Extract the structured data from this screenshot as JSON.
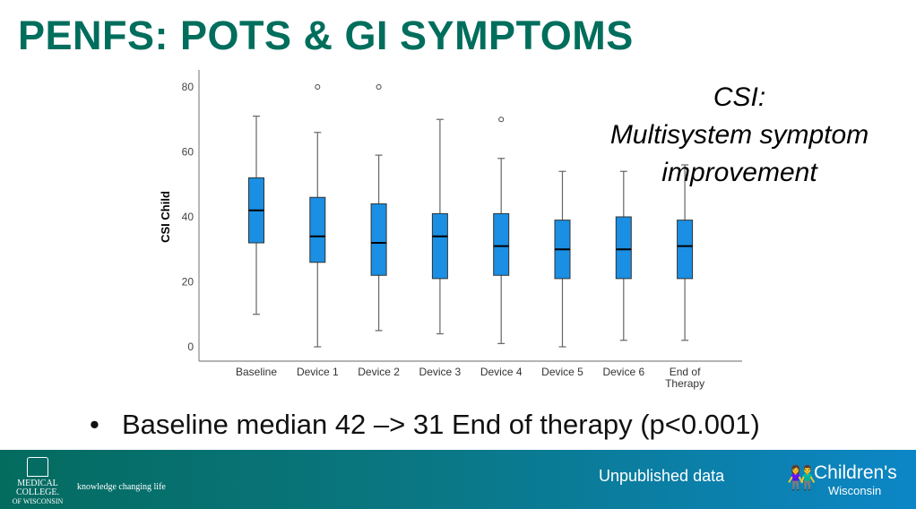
{
  "slide": {
    "title": "PENFS: POTS & GI SYMPTOMS",
    "annotation": [
      "CSI:",
      "Multisystem symptom",
      "improvement"
    ],
    "bullet": "Baseline median 42 –> 31 End of therapy (p<0.001)",
    "footer": {
      "left_logo": [
        "MEDICAL",
        "COLLEGE.",
        "OF WISCONSIN"
      ],
      "tagline": "knowledge changing life",
      "note": "Unpublished data",
      "right_logo": [
        "Children's",
        "Wisconsin"
      ]
    }
  },
  "chart_data": {
    "type": "boxplot",
    "ylabel": "CSI Child",
    "xlabel": "",
    "ylim": [
      0,
      80
    ],
    "yticks": [
      "0",
      "20",
      "40",
      "60",
      "80"
    ],
    "grid": false,
    "box_color": "#1a8fe3",
    "categories": [
      "Baseline",
      "Device 1",
      "Device 2",
      "Device 3",
      "Device 4",
      "Device 5",
      "Device 6",
      "End of Therapy"
    ],
    "boxes": [
      {
        "min": 10,
        "q1": 32,
        "median": 42,
        "q3": 52,
        "max": 71,
        "outliers": []
      },
      {
        "min": 0,
        "q1": 26,
        "median": 34,
        "q3": 46,
        "max": 66,
        "outliers": [
          80
        ]
      },
      {
        "min": 5,
        "q1": 22,
        "median": 32,
        "q3": 44,
        "max": 59,
        "outliers": [
          80
        ]
      },
      {
        "min": 4,
        "q1": 21,
        "median": 34,
        "q3": 41,
        "max": 70,
        "outliers": []
      },
      {
        "min": 1,
        "q1": 22,
        "median": 31,
        "q3": 41,
        "max": 58,
        "outliers": [
          70
        ]
      },
      {
        "min": 0,
        "q1": 21,
        "median": 30,
        "q3": 39,
        "max": 54,
        "outliers": []
      },
      {
        "min": 2,
        "q1": 21,
        "median": 30,
        "q3": 40,
        "max": 54,
        "outliers": []
      },
      {
        "min": 2,
        "q1": 21,
        "median": 31,
        "q3": 39,
        "max": 56,
        "outliers": []
      }
    ]
  }
}
